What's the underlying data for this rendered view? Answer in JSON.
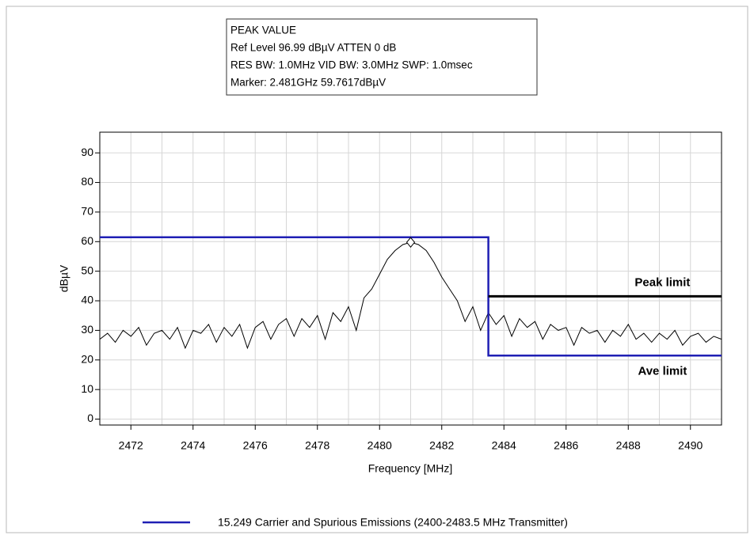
{
  "chart_data": {
    "type": "line",
    "info": [
      "PEAK VALUE",
      "Ref Level 96.99 dBµV    ATTEN 0 dB",
      "RES BW: 1.0MHz  VID BW: 3.0MHz  SWP: 1.0msec",
      "Marker: 2.481GHz  59.7617dBµV"
    ],
    "x_label": "Frequency [MHz]",
    "y_label": "dBµV",
    "xlim": [
      2471,
      2491
    ],
    "ylim": [
      -2,
      97
    ],
    "xticks": [
      2472,
      2474,
      2476,
      2478,
      2480,
      2482,
      2484,
      2486,
      2488,
      2490
    ],
    "x_minor_grid": [
      2471,
      2473,
      2475,
      2477,
      2479,
      2481,
      2483,
      2485,
      2487,
      2489,
      2491
    ],
    "yticks": [
      0,
      10,
      20,
      30,
      40,
      50,
      60,
      70,
      80,
      90
    ],
    "grid": true,
    "series": [
      {
        "color": "#000000",
        "width": 1,
        "x": [
          2471,
          2471.25,
          2471.5,
          2471.75,
          2472,
          2472.25,
          2472.5,
          2472.75,
          2473,
          2473.25,
          2473.5,
          2473.75,
          2474,
          2474.25,
          2474.5,
          2474.75,
          2475,
          2475.25,
          2475.5,
          2475.75,
          2476,
          2476.25,
          2476.5,
          2476.75,
          2477,
          2477.25,
          2477.5,
          2477.75,
          2478,
          2478.25,
          2478.5,
          2478.75,
          2479,
          2479.25,
          2479.5,
          2479.75,
          2480,
          2480.25,
          2480.5,
          2480.75,
          2481,
          2481.25,
          2481.5,
          2481.75,
          2482,
          2482.25,
          2482.5,
          2482.75,
          2483,
          2483.25,
          2483.5,
          2483.75,
          2484,
          2484.25,
          2484.5,
          2484.75,
          2485,
          2485.25,
          2485.5,
          2485.75,
          2486,
          2486.25,
          2486.5,
          2486.75,
          2487,
          2487.25,
          2487.5,
          2487.75,
          2488,
          2488.25,
          2488.5,
          2488.75,
          2489,
          2489.25,
          2489.5,
          2489.75,
          2490,
          2490.25,
          2490.5,
          2490.75,
          2491
        ],
        "values": [
          27,
          29,
          26,
          30,
          28,
          31,
          25,
          29,
          30,
          27,
          31,
          24,
          30,
          29,
          32,
          26,
          31,
          28,
          32,
          24,
          31,
          33,
          27,
          32,
          34,
          28,
          34,
          31,
          35,
          27,
          36,
          33,
          38,
          30,
          41,
          44,
          49,
          54,
          57,
          59,
          59.76,
          59,
          57,
          53,
          48,
          44,
          40,
          33,
          38,
          30,
          36,
          32,
          35,
          28,
          34,
          31,
          33,
          27,
          32,
          30,
          31,
          25,
          31,
          29,
          30,
          26,
          30,
          28,
          32,
          27,
          29,
          26,
          29,
          27,
          30,
          25,
          28,
          29,
          26,
          28,
          27
        ]
      },
      {
        "name": "15.249 Carrier and Spurious Emissions (2400-2483.5 MHz Transmitter)",
        "color": "#1f1fb4",
        "width": 2.5,
        "x": [
          2471,
          2483.5,
          2483.5,
          2491
        ],
        "values": [
          61.5,
          61.5,
          21.5,
          21.5
        ]
      },
      {
        "color": "#000000",
        "width": 3,
        "x": [
          2483.5,
          2491
        ],
        "values": [
          41.5,
          41.5
        ]
      }
    ],
    "marker": {
      "x": 2481,
      "y": 59.7617
    },
    "annotations": [
      {
        "text": "Peak limit",
        "x": 2489.1,
        "y": 46
      },
      {
        "text": "Ave limit",
        "x": 2489.1,
        "y": 16
      }
    ]
  }
}
